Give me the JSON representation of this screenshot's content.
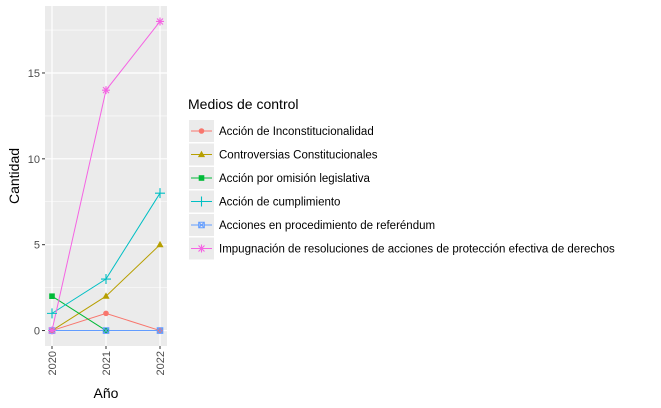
{
  "chart_data": {
    "type": "line",
    "xlabel": "Año",
    "ylabel": "Cantidad",
    "x": [
      "2020",
      "2021",
      "2022"
    ],
    "ylim": [
      -0.9,
      18.9
    ],
    "yticks": [
      0,
      5,
      10,
      15
    ],
    "grid": true,
    "legend": {
      "title": "Medios de control",
      "position": "right"
    },
    "series": [
      {
        "name": "Acción de Inconstitucionalidad",
        "values": [
          0,
          1,
          0
        ],
        "color": "#F8766D",
        "marker": "circle"
      },
      {
        "name": "Controversias Constitucionales",
        "values": [
          0,
          2,
          5
        ],
        "color": "#B79F00",
        "marker": "triangle"
      },
      {
        "name": "Acción por omisión legislativa",
        "values": [
          2,
          0,
          null
        ],
        "color": "#00BA38",
        "marker": "square"
      },
      {
        "name": "Acción de cumplimiento",
        "values": [
          1,
          3,
          8
        ],
        "color": "#00BFC4",
        "marker": "plus"
      },
      {
        "name": "Acciones en procedimiento de referéndum",
        "values": [
          0,
          0,
          0
        ],
        "color": "#619CFF",
        "marker": "square-cross"
      },
      {
        "name": "Impugnación de resoluciones de acciones de protección efectiva de derechos",
        "values": [
          0,
          14,
          18
        ],
        "color": "#F564E3",
        "marker": "asterisk"
      }
    ]
  }
}
